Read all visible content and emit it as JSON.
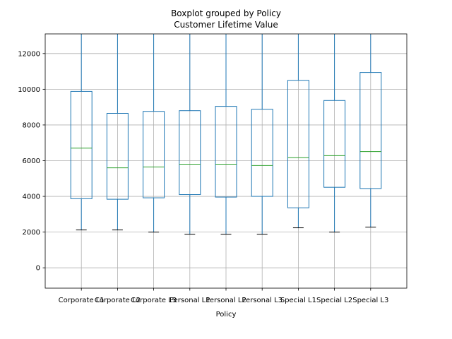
{
  "chart_data": {
    "type": "boxplot",
    "suptitle": "Boxplot grouped by Policy",
    "title": "Customer Lifetime Value",
    "xlabel": "Policy",
    "ylabel": "",
    "categories": [
      "Corporate L1",
      "Corporate L2",
      "Corporate L3",
      "Personal L1",
      "Personal L2",
      "Personal L3",
      "Special L1",
      "Special L2",
      "Special L3"
    ],
    "boxes": [
      {
        "whislo": 2120,
        "q1": 3870,
        "med": 6700,
        "q3": 9880,
        "whishi": 13200
      },
      {
        "whislo": 2120,
        "q1": 3840,
        "med": 5600,
        "q3": 8650,
        "whishi": 13200
      },
      {
        "whislo": 2000,
        "q1": 3920,
        "med": 5650,
        "q3": 8760,
        "whishi": 13200
      },
      {
        "whislo": 1880,
        "q1": 4100,
        "med": 5800,
        "q3": 8800,
        "whishi": 13200
      },
      {
        "whislo": 1880,
        "q1": 3960,
        "med": 5800,
        "q3": 9040,
        "whishi": 13200
      },
      {
        "whislo": 1880,
        "q1": 4000,
        "med": 5730,
        "q3": 8880,
        "whishi": 13200
      },
      {
        "whislo": 2240,
        "q1": 3360,
        "med": 6170,
        "q3": 10500,
        "whishi": 13200
      },
      {
        "whislo": 2000,
        "q1": 4510,
        "med": 6280,
        "q3": 9370,
        "whishi": 13200
      },
      {
        "whislo": 2280,
        "q1": 4440,
        "med": 6510,
        "q3": 10940,
        "whishi": 13200
      }
    ],
    "yticks": [
      0,
      2000,
      4000,
      6000,
      8000,
      10000,
      12000
    ],
    "ylim": [
      -1140,
      13100
    ],
    "grid": true,
    "colors": {
      "box": "#1f77b4",
      "median": "#2ca02c",
      "cap": "#000000",
      "grid": "#b0b0b0"
    }
  }
}
